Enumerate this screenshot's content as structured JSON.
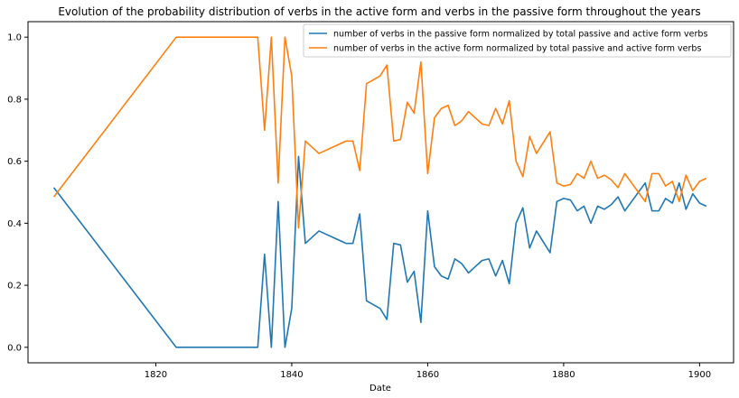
{
  "chart_data": {
    "type": "line",
    "title": "Evolution of the probability distribution of verbs in the active form and verbs in the passive form throughout the years",
    "xlabel": "Date",
    "ylabel": "",
    "xlim": [
      1801.2,
      1905.0
    ],
    "ylim": [
      -0.05,
      1.05
    ],
    "xticks": [
      1820,
      1840,
      1860,
      1880,
      1900
    ],
    "yticks": [
      0.0,
      0.2,
      0.4,
      0.6,
      0.8,
      1.0
    ],
    "grid": false,
    "legend_position": "top-right",
    "x": [
      1805,
      1823,
      1835,
      1836,
      1837,
      1838,
      1839,
      1840,
      1841,
      1842,
      1844,
      1848,
      1849,
      1850,
      1851,
      1853,
      1854,
      1855,
      1856,
      1857,
      1858,
      1859,
      1860,
      1861,
      1862,
      1863,
      1864,
      1865,
      1866,
      1867,
      1868,
      1869,
      1870,
      1871,
      1872,
      1873,
      1874,
      1875,
      1876,
      1877,
      1878,
      1879,
      1880,
      1881,
      1882,
      1883,
      1884,
      1885,
      1886,
      1887,
      1888,
      1889,
      1890,
      1891,
      1892,
      1893,
      1894,
      1895,
      1896,
      1897,
      1898,
      1899,
      1900,
      1901
    ],
    "series": [
      {
        "name": "number of verbs in the passive form normalized by total passive and active form verbs",
        "color": "#1f77b4",
        "values": [
          0.515,
          0.0,
          0.0,
          0.3,
          0.0,
          0.47,
          0.0,
          0.125,
          0.615,
          0.335,
          0.375,
          0.335,
          0.335,
          0.43,
          0.15,
          0.125,
          0.09,
          0.335,
          0.33,
          0.21,
          0.245,
          0.08,
          0.44,
          0.26,
          0.23,
          0.22,
          0.285,
          0.27,
          0.24,
          0.26,
          0.28,
          0.285,
          0.23,
          0.28,
          0.205,
          0.4,
          0.45,
          0.32,
          0.375,
          0.34,
          0.305,
          0.47,
          0.48,
          0.475,
          0.44,
          0.455,
          0.4,
          0.455,
          0.445,
          0.46,
          0.485,
          0.44,
          0.47,
          0.5,
          0.53,
          0.44,
          0.44,
          0.48,
          0.465,
          0.53,
          0.445,
          0.495,
          0.465,
          0.455
        ]
      },
      {
        "name": "number of verbs in the active form normalized by total passive and active form verbs",
        "color": "#ff7f0e",
        "values": [
          0.485,
          1.0,
          1.0,
          0.7,
          1.0,
          0.53,
          1.0,
          0.875,
          0.385,
          0.665,
          0.625,
          0.665,
          0.665,
          0.57,
          0.85,
          0.875,
          0.91,
          0.665,
          0.67,
          0.79,
          0.755,
          0.92,
          0.56,
          0.74,
          0.77,
          0.78,
          0.715,
          0.73,
          0.76,
          0.74,
          0.72,
          0.715,
          0.77,
          0.72,
          0.795,
          0.6,
          0.55,
          0.68,
          0.625,
          0.66,
          0.695,
          0.53,
          0.52,
          0.525,
          0.56,
          0.545,
          0.6,
          0.545,
          0.555,
          0.54,
          0.515,
          0.56,
          0.53,
          0.5,
          0.47,
          0.56,
          0.56,
          0.52,
          0.535,
          0.47,
          0.555,
          0.505,
          0.535,
          0.545
        ]
      }
    ]
  }
}
